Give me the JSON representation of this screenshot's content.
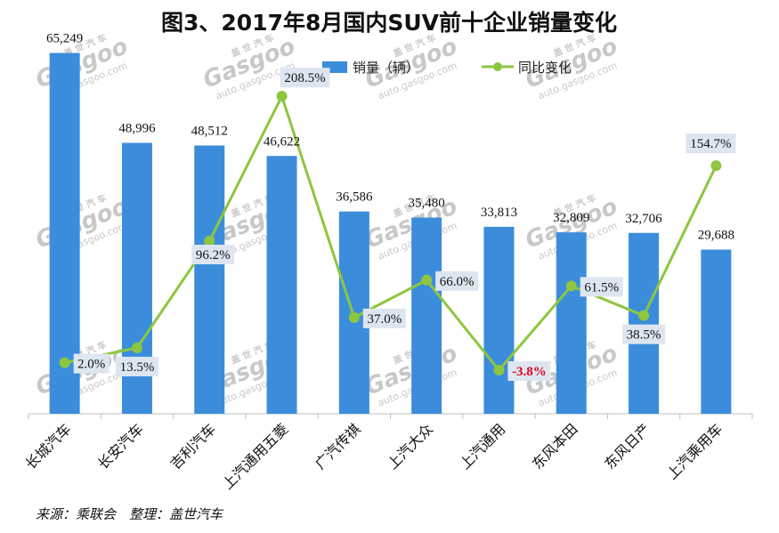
{
  "chart_data": {
    "type": "bar",
    "title": "图3、2017年8月国内SUV前十企业销量变化",
    "categories": [
      "长城汽车",
      "长安汽车",
      "吉利汽车",
      "上汽通用五菱",
      "广汽传祺",
      "上汽大众",
      "上汽通用",
      "东风本田",
      "东风日产",
      "上汽乘用车"
    ],
    "series": [
      {
        "name": "销量（辆）",
        "type": "bar",
        "color": "#3b8ddb",
        "values": [
          65249,
          48996,
          48512,
          46622,
          36586,
          35480,
          33813,
          32809,
          32706,
          29688
        ],
        "labels": [
          "65,249",
          "48,996",
          "48,512",
          "46,622",
          "36,586",
          "35,480",
          "33,813",
          "32,809",
          "32,706",
          "29,688"
        ]
      },
      {
        "name": "同比变化",
        "type": "line",
        "color": "#8dc63f",
        "values": [
          2.0,
          13.5,
          96.2,
          208.5,
          37.0,
          66.0,
          -3.8,
          61.5,
          38.5,
          154.7
        ],
        "labels": [
          "2.0%",
          "13.5%",
          "96.2%",
          "208.5%",
          "37.0%",
          "66.0%",
          "-3.8%",
          "61.5%",
          "38.5%",
          "154.7%"
        ]
      }
    ],
    "bar_ylim": [
      0,
      70000
    ],
    "line_ylim": [
      -30,
      230
    ],
    "legend_position": "top-center",
    "grid": false
  },
  "source_text": "来源：乘联会　整理：盖世汽车",
  "watermark": {
    "brand": "Gasgoo",
    "cn": "盖 世 汽 车",
    "url": "auto.gasgoo.com"
  }
}
